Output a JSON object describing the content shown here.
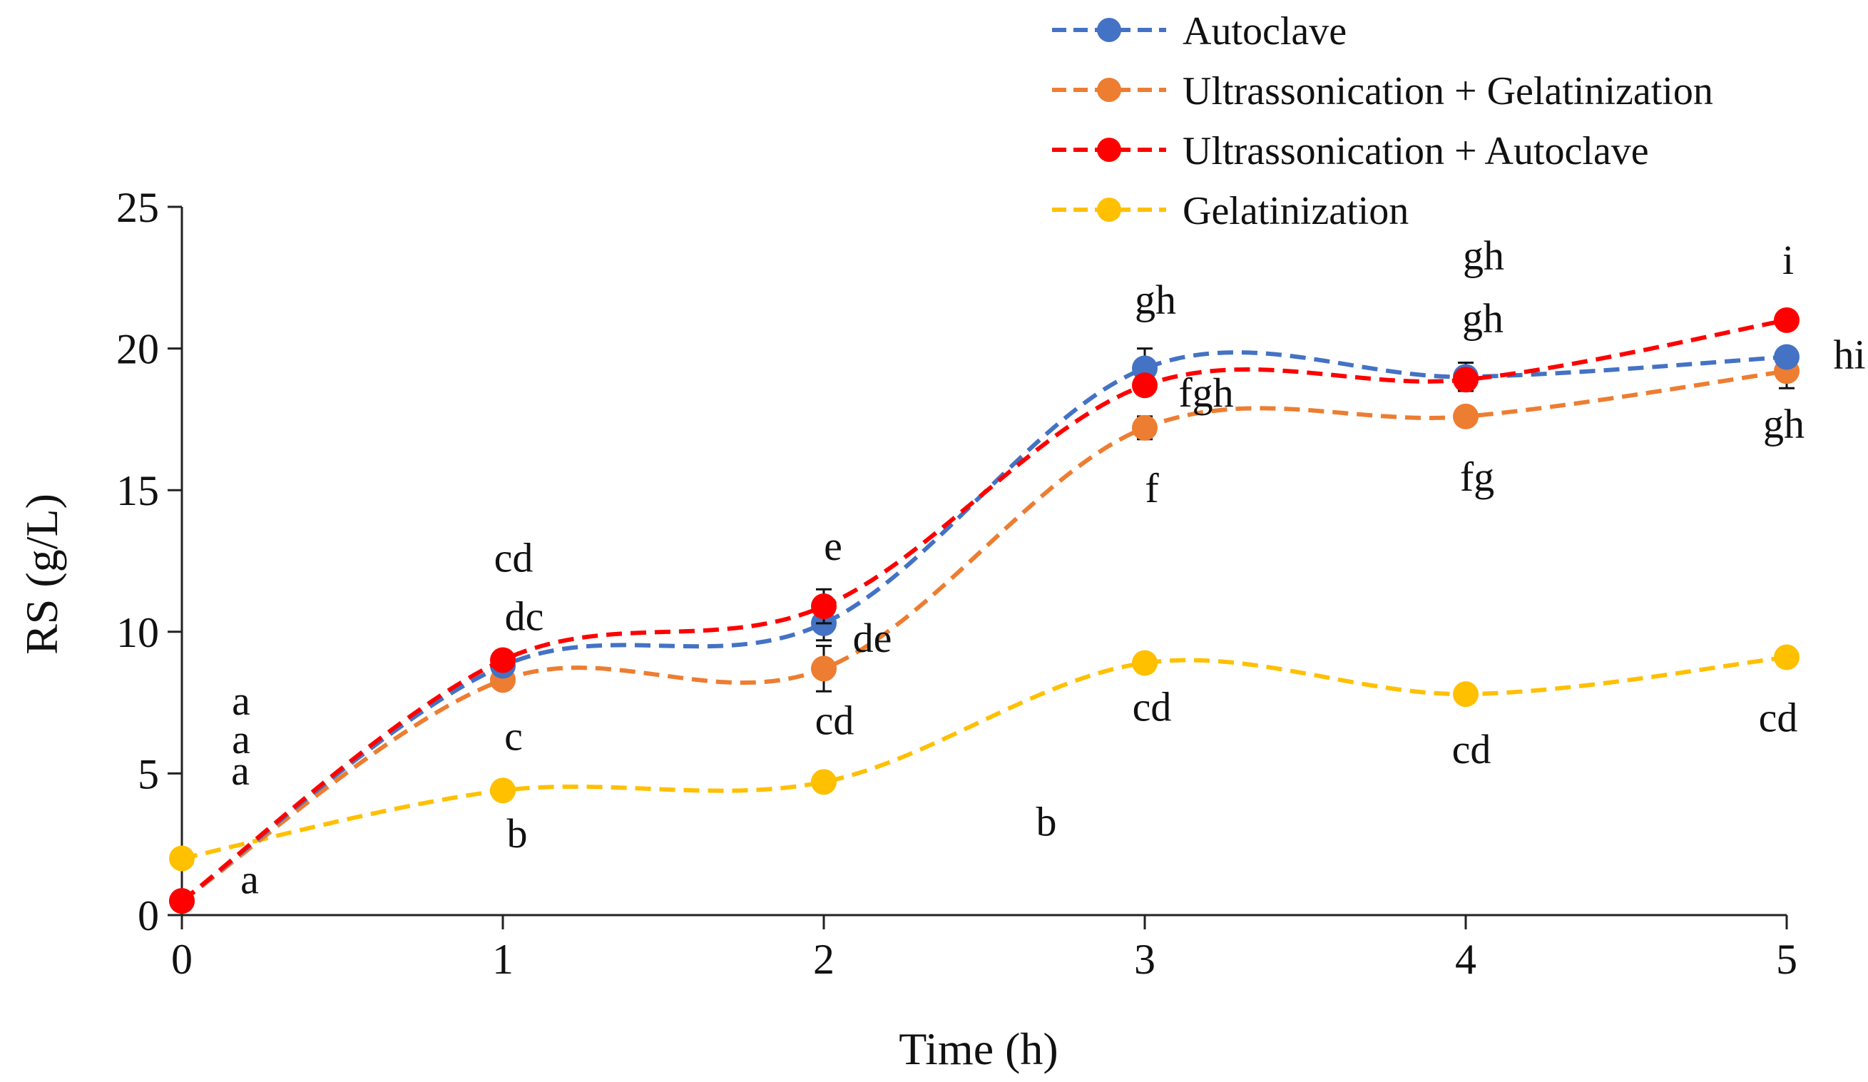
{
  "chart_data": {
    "type": "line",
    "title": "",
    "xlabel": "Time (h)",
    "ylabel": "RS (g/L)",
    "xlim": [
      0,
      5
    ],
    "ylim": [
      0,
      25
    ],
    "x_ticks": [
      0,
      1,
      2,
      3,
      4,
      5
    ],
    "y_ticks": [
      0,
      5,
      10,
      15,
      20,
      25
    ],
    "grid": false,
    "legend_position": "top-right",
    "series": [
      {
        "name": "Autoclave",
        "color": "#4472C4",
        "x": [
          0,
          1,
          2,
          3,
          4,
          5
        ],
        "values": [
          0.5,
          8.8,
          10.3,
          19.3,
          19.0,
          19.7
        ],
        "errors": [
          0,
          0,
          0.6,
          0.7,
          0.5,
          0
        ],
        "labels": [
          "a",
          "dc",
          "de",
          "gh",
          "gh",
          "hi"
        ]
      },
      {
        "name": "Ultrassonication + Gelatinization",
        "color": "#ED7D31",
        "x": [
          0,
          1,
          2,
          3,
          4,
          5
        ],
        "values": [
          0.5,
          8.3,
          8.7,
          17.2,
          17.6,
          19.2
        ],
        "errors": [
          0,
          0,
          0.8,
          0.4,
          0,
          0.6
        ],
        "labels": [
          "a",
          "c",
          "cd",
          "f",
          "fg",
          "gh"
        ]
      },
      {
        "name": "Ultrassonication + Autoclave",
        "color": "#FF0000",
        "x": [
          0,
          1,
          2,
          3,
          4,
          5
        ],
        "values": [
          0.5,
          9.0,
          10.9,
          18.7,
          18.9,
          21.0
        ],
        "errors": [
          0,
          0,
          0.6,
          0,
          0,
          0
        ],
        "labels": [
          "a",
          "cd",
          "e",
          "fgh",
          "gh",
          "i"
        ]
      },
      {
        "name": "Gelatinization",
        "color": "#FFC000",
        "x": [
          0,
          1,
          2,
          3,
          4,
          5
        ],
        "values": [
          2.0,
          4.4,
          4.7,
          8.9,
          7.8,
          9.1
        ],
        "errors": [
          0,
          0,
          0,
          0,
          0,
          0
        ],
        "labels": [
          "a",
          "b",
          "b",
          "cd",
          "cd",
          "cd"
        ]
      }
    ]
  }
}
